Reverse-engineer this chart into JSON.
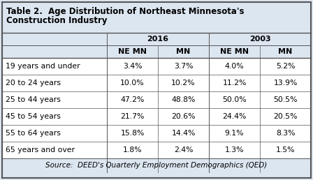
{
  "title_line1": "Table 2.  Age Distribution of Northeast Minnesota's",
  "title_line2": "Construction Industry",
  "col_groups": [
    "2016",
    "2003"
  ],
  "col_headers": [
    "NE MN",
    "MN",
    "NE MN",
    "MN"
  ],
  "row_labels": [
    "19 years and under",
    "20 to 24 years",
    "25 to 44 years",
    "45 to 54 years",
    "55 to 64 years",
    "65 years and over"
  ],
  "data": [
    [
      "3.4%",
      "3.7%",
      "4.0%",
      "5.2%"
    ],
    [
      "10.0%",
      "10.2%",
      "11.2%",
      "13.9%"
    ],
    [
      "47.2%",
      "48.8%",
      "50.0%",
      "50.5%"
    ],
    [
      "21.7%",
      "20.6%",
      "24.4%",
      "20.5%"
    ],
    [
      "15.8%",
      "14.4%",
      "9.1%",
      "8.3%"
    ],
    [
      "1.8%",
      "2.4%",
      "1.3%",
      "1.5%"
    ]
  ],
  "source_text": "Source:  DEED's Quarterly Employment Demographics (QED)",
  "bg_color": "#dce6f1",
  "white_bg": "#ffffff",
  "border_color": "#555555",
  "title_fontsize": 8.5,
  "header_fontsize": 8,
  "data_fontsize": 7.8,
  "source_fontsize": 7.5,
  "fig_w": 4.48,
  "fig_h": 2.58,
  "dpi": 100
}
